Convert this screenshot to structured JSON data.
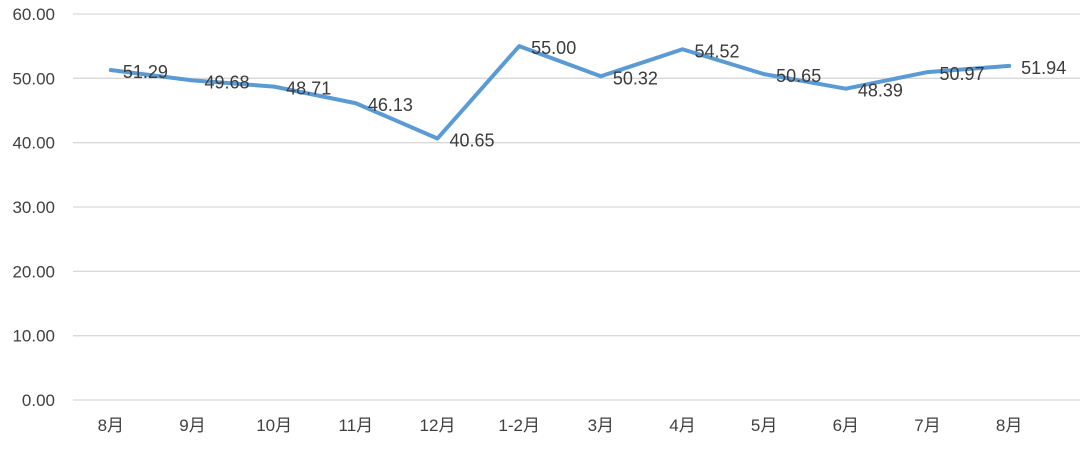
{
  "chart_data": {
    "type": "line",
    "categories": [
      "8月",
      "9月",
      "10月",
      "11月",
      "12月",
      "1-2月",
      "3月",
      "4月",
      "5月",
      "6月",
      "7月",
      "8月"
    ],
    "values": [
      51.29,
      49.68,
      48.71,
      46.13,
      40.65,
      55.0,
      50.32,
      54.52,
      50.65,
      48.39,
      50.97,
      51.94
    ],
    "data_labels": [
      "51.29",
      "49.68",
      "48.71",
      "46.13",
      "40.65",
      "55.00",
      "50.32",
      "54.52",
      "50.65",
      "48.39",
      "50.97",
      "51.94"
    ],
    "title": "",
    "xlabel": "",
    "ylabel": "",
    "ylim": [
      0,
      60
    ],
    "ytick_interval": 10,
    "ytick_labels": [
      "0.00",
      "10.00",
      "20.00",
      "30.00",
      "40.00",
      "50.00",
      "60.00"
    ],
    "grid": true,
    "legend_position": "none",
    "colors": {
      "line": "#5B9BD5",
      "gridline": "#D9D9D9",
      "axis_text": "#404040",
      "data_label_text": "#3B3B3B",
      "background": "#FFFFFF"
    }
  }
}
